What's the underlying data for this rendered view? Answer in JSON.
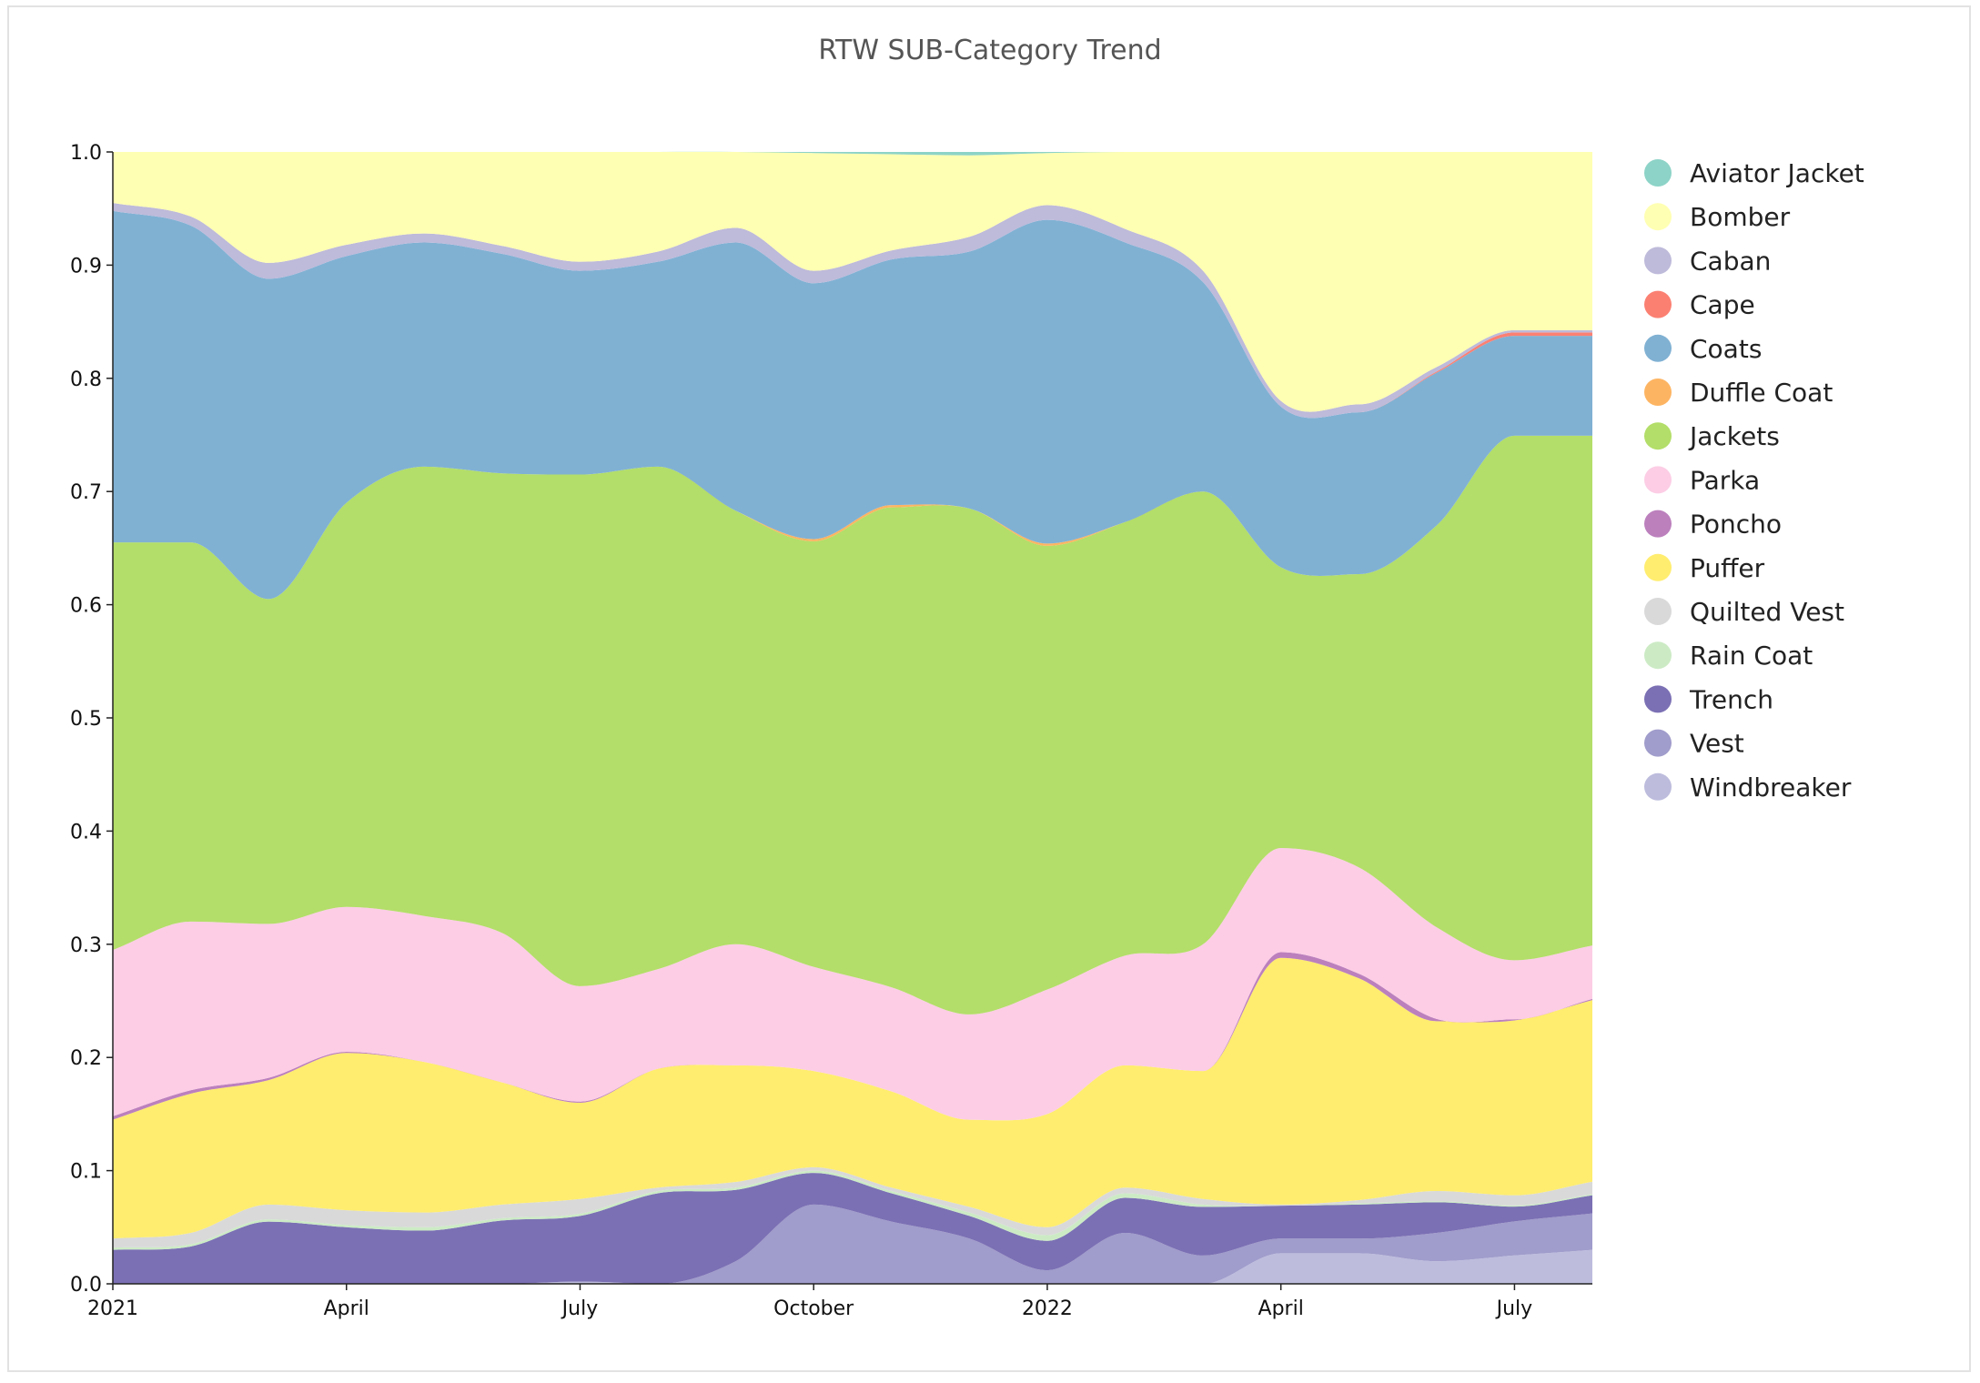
{
  "chart_data": {
    "type": "area",
    "stacking": "normalized",
    "title": "RTW SUB-Category Trend",
    "x": [
      "2021-01",
      "2021-02",
      "2021-03",
      "2021-04",
      "2021-05",
      "2021-06",
      "2021-07",
      "2021-08",
      "2021-09",
      "2021-10",
      "2021-11",
      "2021-12",
      "2022-01",
      "2022-02",
      "2022-03",
      "2022-04",
      "2022-05",
      "2022-06",
      "2022-07",
      "2022-08"
    ],
    "x_tick_labels": [
      "2021",
      "April",
      "July",
      "October",
      "2022",
      "April",
      "July"
    ],
    "x_tick_index": [
      0,
      3,
      6,
      9,
      12,
      15,
      18
    ],
    "y_ticks": [
      "0.0",
      "0.1",
      "0.2",
      "0.3",
      "0.4",
      "0.5",
      "0.6",
      "0.7",
      "0.8",
      "0.9",
      "1.0"
    ],
    "ylim": [
      0,
      1
    ],
    "grid": false,
    "legend_position": "right",
    "series": [
      {
        "name": "Aviator Jacket",
        "color": "#8dd3c7",
        "values": [
          0,
          0,
          0,
          0,
          0,
          0,
          0,
          0,
          0,
          0.001,
          0.002,
          0.003,
          0.001,
          0,
          0,
          0,
          0,
          0,
          0,
          0
        ]
      },
      {
        "name": "Bomber",
        "color": "#ffffb3",
        "values": [
          0.045,
          0.057,
          0.098,
          0.082,
          0.072,
          0.083,
          0.097,
          0.088,
          0.067,
          0.104,
          0.085,
          0.072,
          0.046,
          0.068,
          0.105,
          0.22,
          0.223,
          0.19,
          0.157,
          0.157
        ]
      },
      {
        "name": "Caban",
        "color": "#bebada",
        "values": [
          0.007,
          0.008,
          0.014,
          0.01,
          0.008,
          0.007,
          0.008,
          0.009,
          0.013,
          0.011,
          0.008,
          0.013,
          0.013,
          0.012,
          0.01,
          0.005,
          0.007,
          0.004,
          0.002,
          0.002
        ]
      },
      {
        "name": "Cape",
        "color": "#fb8072",
        "values": [
          0,
          0,
          0,
          0,
          0,
          0,
          0,
          0,
          0,
          0,
          0,
          0,
          0,
          0,
          0,
          0,
          0,
          0.001,
          0.003,
          0.003
        ]
      },
      {
        "name": "Coats",
        "color": "#80b1d3",
        "values": [
          0.293,
          0.28,
          0.283,
          0.218,
          0.198,
          0.194,
          0.18,
          0.181,
          0.237,
          0.226,
          0.217,
          0.227,
          0.286,
          0.247,
          0.185,
          0.142,
          0.143,
          0.135,
          0.088,
          0.088
        ]
      },
      {
        "name": "Duffle Coat",
        "color": "#fdb462",
        "values": [
          0,
          0,
          0,
          0,
          0,
          0,
          0,
          0,
          0,
          0.002,
          0.002,
          0,
          0.002,
          0,
          0,
          0,
          0,
          0,
          0,
          0
        ]
      },
      {
        "name": "Jackets",
        "color": "#b3de69",
        "values": [
          0.36,
          0.335,
          0.287,
          0.357,
          0.397,
          0.406,
          0.452,
          0.444,
          0.383,
          0.376,
          0.424,
          0.447,
          0.392,
          0.383,
          0.4,
          0.248,
          0.259,
          0.355,
          0.462,
          0.449
        ]
      },
      {
        "name": "Parka",
        "color": "#fccde5",
        "values": [
          0.147,
          0.149,
          0.136,
          0.128,
          0.129,
          0.132,
          0.102,
          0.088,
          0.107,
          0.092,
          0.092,
          0.093,
          0.11,
          0.097,
          0.112,
          0.092,
          0.094,
          0.081,
          0.052,
          0.047
        ]
      },
      {
        "name": "Poncho",
        "color": "#bc80bd",
        "values": [
          0.003,
          0.003,
          0.002,
          0.001,
          0,
          0,
          0.001,
          0,
          0,
          0,
          0,
          0,
          0,
          0,
          0,
          0.005,
          0.004,
          0.002,
          0.001,
          0.001
        ]
      },
      {
        "name": "Puffer",
        "color": "#ffed6f",
        "values": [
          0.105,
          0.123,
          0.11,
          0.139,
          0.133,
          0.108,
          0.085,
          0.105,
          0.103,
          0.085,
          0.085,
          0.077,
          0.1,
          0.108,
          0.113,
          0.218,
          0.196,
          0.15,
          0.154,
          0.16
        ]
      },
      {
        "name": "Quilted Vest",
        "color": "#d9d9d9",
        "values": [
          0.008,
          0.01,
          0.013,
          0.013,
          0.013,
          0.012,
          0.013,
          0.003,
          0.005,
          0.003,
          0.003,
          0.005,
          0.007,
          0.005,
          0.005,
          0.001,
          0.003,
          0.009,
          0.009,
          0.011
        ]
      },
      {
        "name": "Rain Coat",
        "color": "#ccebc5",
        "values": [
          0.002,
          0.002,
          0.002,
          0.002,
          0.003,
          0.002,
          0.002,
          0.002,
          0.002,
          0.002,
          0.002,
          0.003,
          0.005,
          0.004,
          0.002,
          0,
          0.001,
          0.001,
          0.001,
          0.001
        ]
      },
      {
        "name": "Trench",
        "color": "#7b70b4",
        "values": [
          0.03,
          0.033,
          0.055,
          0.05,
          0.047,
          0.056,
          0.058,
          0.08,
          0.063,
          0.028,
          0.025,
          0.02,
          0.026,
          0.031,
          0.043,
          0.029,
          0.03,
          0.027,
          0.013,
          0.016
        ]
      },
      {
        "name": "Vest",
        "color": "#a09ccb",
        "values": [
          0,
          0,
          0,
          0,
          0,
          0,
          0,
          0,
          0.02,
          0.07,
          0.055,
          0.04,
          0.012,
          0.045,
          0.025,
          0.013,
          0.013,
          0.025,
          0.03,
          0.032
        ]
      },
      {
        "name": "Windbreaker",
        "color": "#bdbcdd",
        "values": [
          0,
          0,
          0,
          0,
          0,
          0,
          0.002,
          0,
          0,
          0,
          0,
          0,
          0,
          0,
          0,
          0.027,
          0.027,
          0.02,
          0.025,
          0.03
        ]
      }
    ]
  }
}
